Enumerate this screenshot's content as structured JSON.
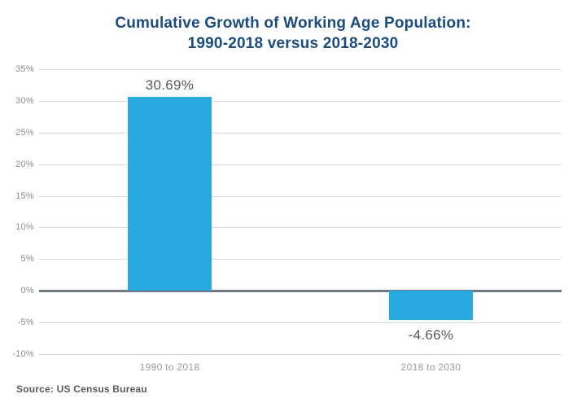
{
  "title": {
    "line1": "Cumulative Growth of Working Age Population:",
    "line2": "1990-2018 versus 2018-2030"
  },
  "source_note": "Source: US Census Bureau",
  "colors": {
    "title": "#1A4C7C",
    "bar": "#29A9E1",
    "gridline": "#DCDCDC",
    "zero_line": "#6E7887",
    "value_label": "#595959",
    "ytick_label": "#8C8C8C",
    "xtick_label": "#9B9B9B",
    "source": "#58595B",
    "background": "#FFFFFF"
  },
  "chart_data": {
    "type": "bar",
    "title": "Cumulative Growth of Working Age Population: 1990-2018 versus 2018-2030",
    "categories": [
      "1990 to 2018",
      "2018 to 2030"
    ],
    "values": [
      30.69,
      -4.66
    ],
    "value_labels": [
      "30.69%",
      "-4.66%"
    ],
    "xlabel": "",
    "ylabel": "",
    "ylim": [
      -10,
      35
    ],
    "ytick_step": 5,
    "ytick_labels": [
      "35%",
      "30%",
      "25%",
      "20%",
      "15%",
      "10%",
      "5%",
      "0%",
      "-5%",
      "-10%"
    ],
    "grid": true,
    "legend_position": "none",
    "bar_color": "#29A9E1",
    "source": "US Census Bureau"
  }
}
